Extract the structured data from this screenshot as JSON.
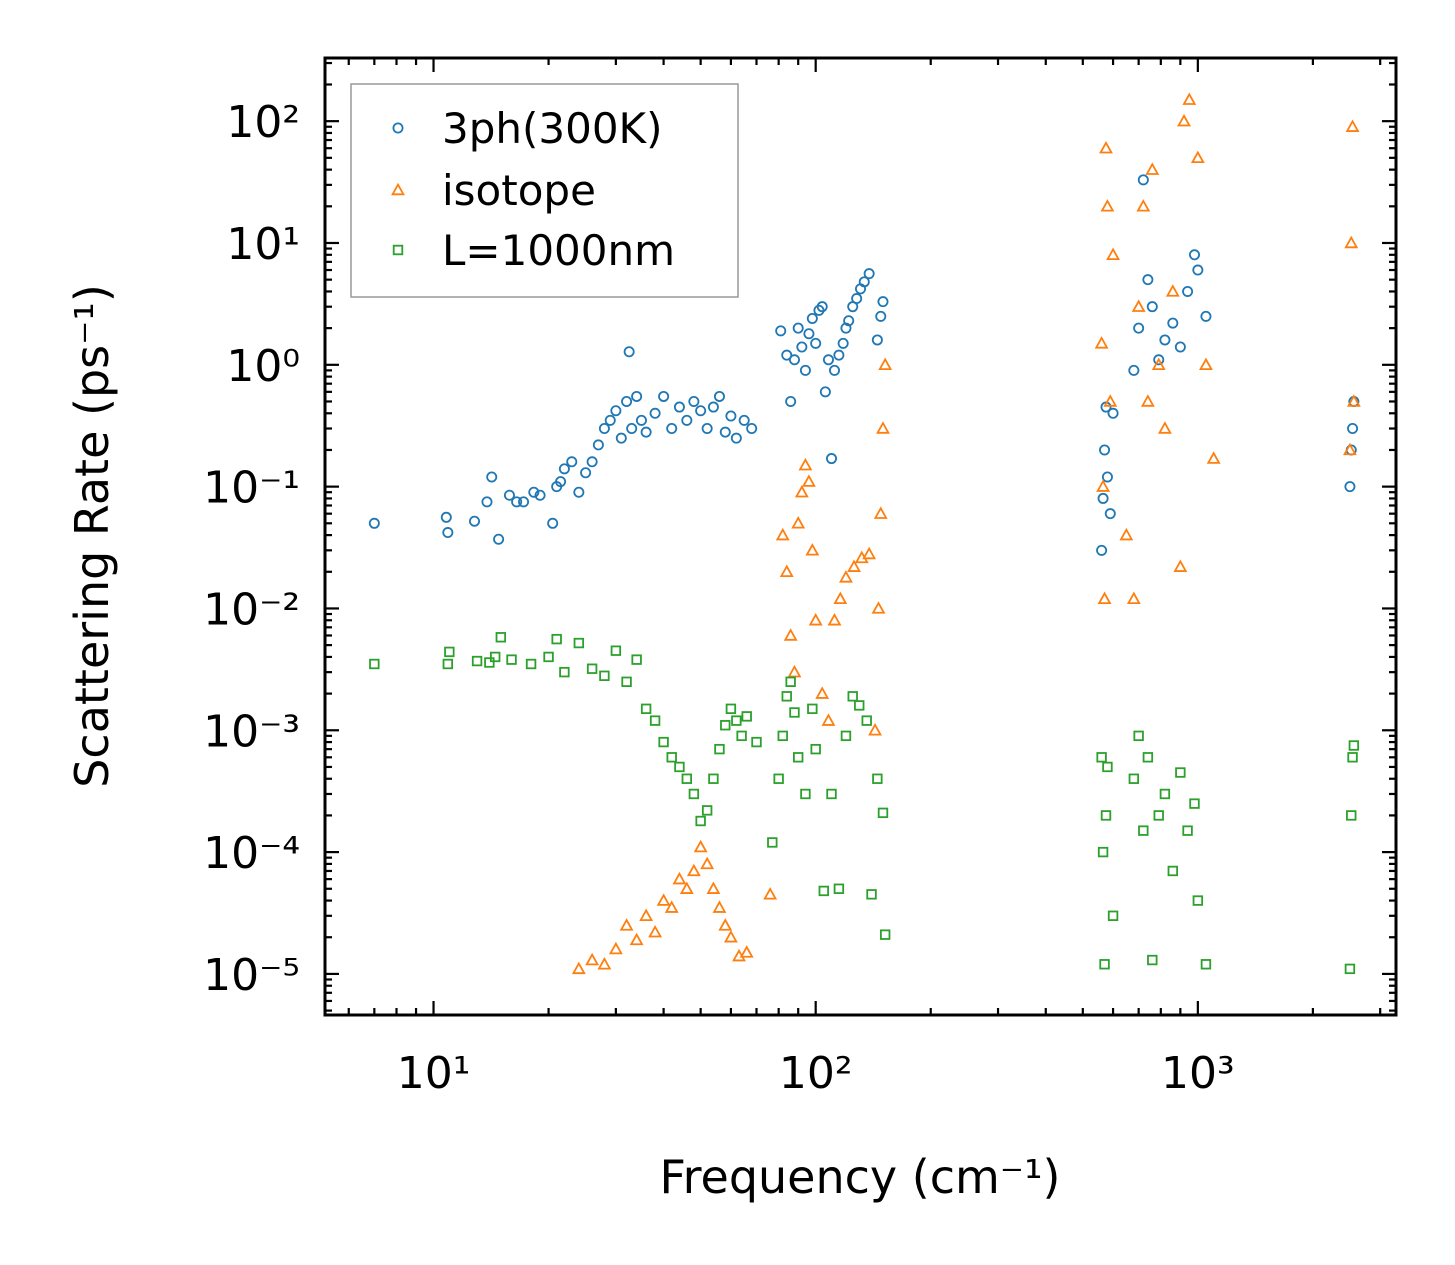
{
  "chart_data": {
    "type": "scatter",
    "xscale": "log",
    "yscale": "log",
    "xlim": [
      5.2,
      3300
    ],
    "ylim": [
      4.6e-06,
      330
    ],
    "xlabel": "Frequency (cm⁻¹)",
    "ylabel": "Scattering Rate (ps⁻¹)",
    "xticks": [
      {
        "value": 10,
        "label": "10¹"
      },
      {
        "value": 100,
        "label": "10²"
      },
      {
        "value": 1000,
        "label": "10³"
      }
    ],
    "yticks": [
      {
        "value": 1e-05,
        "label": "10⁻⁵"
      },
      {
        "value": 0.0001,
        "label": "10⁻⁴"
      },
      {
        "value": 0.001,
        "label": "10⁻³"
      },
      {
        "value": 0.01,
        "label": "10⁻²"
      },
      {
        "value": 0.1,
        "label": "10⁻¹"
      },
      {
        "value": 1,
        "label": "10⁰"
      },
      {
        "value": 10,
        "label": "10¹"
      },
      {
        "value": 100,
        "label": "10²"
      }
    ],
    "legend": {
      "position": "top-left"
    },
    "series": [
      {
        "name": "3ph(300K)",
        "marker": "circle",
        "color": "#1f77b4",
        "points": [
          [
            7,
            0.05
          ],
          [
            10.8,
            0.056
          ],
          [
            10.9,
            0.042
          ],
          [
            12.8,
            0.052
          ],
          [
            13.8,
            0.075
          ],
          [
            14.2,
            0.12
          ],
          [
            14.8,
            0.037
          ],
          [
            15.8,
            0.085
          ],
          [
            16.5,
            0.075
          ],
          [
            17.2,
            0.075
          ],
          [
            18.3,
            0.09
          ],
          [
            19,
            0.085
          ],
          [
            20.5,
            0.05
          ],
          [
            21,
            0.1
          ],
          [
            21.5,
            0.11
          ],
          [
            22,
            0.14
          ],
          [
            23,
            0.16
          ],
          [
            24,
            0.09
          ],
          [
            25,
            0.13
          ],
          [
            26,
            0.16
          ],
          [
            27,
            0.22
          ],
          [
            28,
            0.3
          ],
          [
            29,
            0.35
          ],
          [
            30,
            0.42
          ],
          [
            31,
            0.25
          ],
          [
            32,
            0.5
          ],
          [
            32.5,
            1.28
          ],
          [
            33,
            0.3
          ],
          [
            34,
            0.55
          ],
          [
            35,
            0.35
          ],
          [
            36,
            0.28
          ],
          [
            38,
            0.4
          ],
          [
            40,
            0.55
          ],
          [
            42,
            0.3
          ],
          [
            44,
            0.45
          ],
          [
            46,
            0.35
          ],
          [
            48,
            0.5
          ],
          [
            50,
            0.42
          ],
          [
            52,
            0.3
          ],
          [
            54,
            0.45
          ],
          [
            56,
            0.55
          ],
          [
            58,
            0.28
          ],
          [
            60,
            0.38
          ],
          [
            62,
            0.25
          ],
          [
            65,
            0.35
          ],
          [
            68,
            0.3
          ],
          [
            81,
            1.9
          ],
          [
            84,
            1.2
          ],
          [
            86,
            0.5
          ],
          [
            88,
            1.1
          ],
          [
            90,
            2.0
          ],
          [
            92,
            1.4
          ],
          [
            94,
            0.9
          ],
          [
            96,
            1.8
          ],
          [
            98,
            2.4
          ],
          [
            100,
            1.5
          ],
          [
            102,
            2.8
          ],
          [
            104,
            3.0
          ],
          [
            106,
            0.6
          ],
          [
            108,
            1.1
          ],
          [
            110,
            0.17
          ],
          [
            112,
            0.9
          ],
          [
            115,
            1.2
          ],
          [
            118,
            1.5
          ],
          [
            120,
            2.0
          ],
          [
            122,
            2.3
          ],
          [
            125,
            3.0
          ],
          [
            128,
            3.5
          ],
          [
            131,
            4.2
          ],
          [
            134,
            4.8
          ],
          [
            138,
            5.6
          ],
          [
            145,
            1.6
          ],
          [
            148,
            2.5
          ],
          [
            150,
            3.3
          ],
          [
            560,
            0.03
          ],
          [
            565,
            0.08
          ],
          [
            570,
            0.2
          ],
          [
            575,
            0.45
          ],
          [
            580,
            0.12
          ],
          [
            590,
            0.06
          ],
          [
            600,
            0.4
          ],
          [
            680,
            0.9
          ],
          [
            700,
            2.0
          ],
          [
            720,
            33
          ],
          [
            740,
            5.0
          ],
          [
            760,
            3.0
          ],
          [
            790,
            1.1
          ],
          [
            820,
            1.6
          ],
          [
            860,
            2.2
          ],
          [
            900,
            1.4
          ],
          [
            940,
            4.0
          ],
          [
            980,
            8.0
          ],
          [
            1000,
            6.0
          ],
          [
            1050,
            2.5
          ],
          [
            2500,
            0.1
          ],
          [
            2520,
            0.2
          ],
          [
            2540,
            0.3
          ],
          [
            2560,
            0.5
          ]
        ]
      },
      {
        "name": "isotope",
        "marker": "triangle",
        "color": "#ff7f0e",
        "points": [
          [
            24,
            1.1e-05
          ],
          [
            26,
            1.3e-05
          ],
          [
            28,
            1.2e-05
          ],
          [
            30,
            1.6e-05
          ],
          [
            32,
            2.5e-05
          ],
          [
            34,
            1.9e-05
          ],
          [
            36,
            3e-05
          ],
          [
            38,
            2.2e-05
          ],
          [
            40,
            4e-05
          ],
          [
            42,
            3.5e-05
          ],
          [
            44,
            6e-05
          ],
          [
            46,
            5e-05
          ],
          [
            48,
            7e-05
          ],
          [
            50,
            0.00011
          ],
          [
            52,
            8e-05
          ],
          [
            54,
            5e-05
          ],
          [
            56,
            3.5e-05
          ],
          [
            58,
            2.5e-05
          ],
          [
            60,
            2e-05
          ],
          [
            63,
            1.4e-05
          ],
          [
            66,
            1.5e-05
          ],
          [
            76,
            4.5e-05
          ],
          [
            82,
            0.04
          ],
          [
            84,
            0.02
          ],
          [
            86,
            0.006
          ],
          [
            88,
            0.003
          ],
          [
            90,
            0.05
          ],
          [
            92,
            0.09
          ],
          [
            94,
            0.15
          ],
          [
            96,
            0.11
          ],
          [
            98,
            0.03
          ],
          [
            100,
            0.008
          ],
          [
            104,
            0.002
          ],
          [
            108,
            0.0012
          ],
          [
            112,
            0.008
          ],
          [
            116,
            0.012
          ],
          [
            120,
            0.018
          ],
          [
            126,
            0.022
          ],
          [
            132,
            0.026
          ],
          [
            138,
            0.028
          ],
          [
            143,
            0.001
          ],
          [
            146,
            0.01
          ],
          [
            148,
            0.06
          ],
          [
            150,
            0.3
          ],
          [
            152,
            1.0
          ],
          [
            560,
            1.5
          ],
          [
            565,
            0.1
          ],
          [
            570,
            0.012
          ],
          [
            575,
            60
          ],
          [
            580,
            20
          ],
          [
            590,
            0.5
          ],
          [
            600,
            8.0
          ],
          [
            650,
            0.04
          ],
          [
            680,
            0.012
          ],
          [
            700,
            3.0
          ],
          [
            720,
            20
          ],
          [
            740,
            0.5
          ],
          [
            760,
            40
          ],
          [
            790,
            1.0
          ],
          [
            820,
            0.3
          ],
          [
            860,
            4.0
          ],
          [
            900,
            0.022
          ],
          [
            920,
            100
          ],
          [
            950,
            150
          ],
          [
            1000,
            50
          ],
          [
            1050,
            1.0
          ],
          [
            1100,
            0.17
          ],
          [
            2500,
            0.2
          ],
          [
            2520,
            10
          ],
          [
            2540,
            90
          ],
          [
            2560,
            0.5
          ]
        ]
      },
      {
        "name": "L=1000nm",
        "marker": "square",
        "color": "#2ca02c",
        "points": [
          [
            7,
            0.0035
          ],
          [
            10.9,
            0.0035
          ],
          [
            11,
            0.0044
          ],
          [
            13,
            0.0037
          ],
          [
            14,
            0.0036
          ],
          [
            14.5,
            0.004
          ],
          [
            15,
            0.0058
          ],
          [
            16,
            0.0038
          ],
          [
            18,
            0.0035
          ],
          [
            20,
            0.004
          ],
          [
            21,
            0.0056
          ],
          [
            22,
            0.003
          ],
          [
            24,
            0.0052
          ],
          [
            26,
            0.0032
          ],
          [
            28,
            0.0028
          ],
          [
            30,
            0.0045
          ],
          [
            32,
            0.0025
          ],
          [
            34,
            0.0038
          ],
          [
            36,
            0.0015
          ],
          [
            38,
            0.0012
          ],
          [
            40,
            0.0008
          ],
          [
            42,
            0.0006
          ],
          [
            44,
            0.0005
          ],
          [
            46,
            0.0004
          ],
          [
            48,
            0.0003
          ],
          [
            50,
            0.00018
          ],
          [
            52,
            0.00022
          ],
          [
            54,
            0.0004
          ],
          [
            56,
            0.0007
          ],
          [
            58,
            0.0011
          ],
          [
            60,
            0.0015
          ],
          [
            62,
            0.0012
          ],
          [
            64,
            0.0009
          ],
          [
            66,
            0.0013
          ],
          [
            70,
            0.0008
          ],
          [
            77,
            0.00012
          ],
          [
            80,
            0.0004
          ],
          [
            82,
            0.0009
          ],
          [
            84,
            0.0019
          ],
          [
            86,
            0.0025
          ],
          [
            88,
            0.0014
          ],
          [
            90,
            0.0006
          ],
          [
            94,
            0.0003
          ],
          [
            98,
            0.0015
          ],
          [
            100,
            0.0007
          ],
          [
            105,
            4.8e-05
          ],
          [
            110,
            0.0003
          ],
          [
            115,
            5e-05
          ],
          [
            120,
            0.0009
          ],
          [
            125,
            0.0019
          ],
          [
            130,
            0.0016
          ],
          [
            136,
            0.0012
          ],
          [
            140,
            4.5e-05
          ],
          [
            145,
            0.0004
          ],
          [
            150,
            0.00021
          ],
          [
            152,
            2.1e-05
          ],
          [
            560,
            0.0006
          ],
          [
            565,
            0.0001
          ],
          [
            570,
            1.2e-05
          ],
          [
            575,
            0.0002
          ],
          [
            580,
            0.0005
          ],
          [
            600,
            3e-05
          ],
          [
            680,
            0.0004
          ],
          [
            700,
            0.0009
          ],
          [
            720,
            0.00015
          ],
          [
            740,
            0.0006
          ],
          [
            760,
            1.3e-05
          ],
          [
            790,
            0.0002
          ],
          [
            820,
            0.0003
          ],
          [
            860,
            7e-05
          ],
          [
            900,
            0.00045
          ],
          [
            940,
            0.00015
          ],
          [
            980,
            0.00025
          ],
          [
            1000,
            4e-05
          ],
          [
            1050,
            1.2e-05
          ],
          [
            2500,
            1.1e-05
          ],
          [
            2520,
            0.0002
          ],
          [
            2540,
            0.0006
          ],
          [
            2560,
            0.00075
          ]
        ]
      }
    ]
  }
}
